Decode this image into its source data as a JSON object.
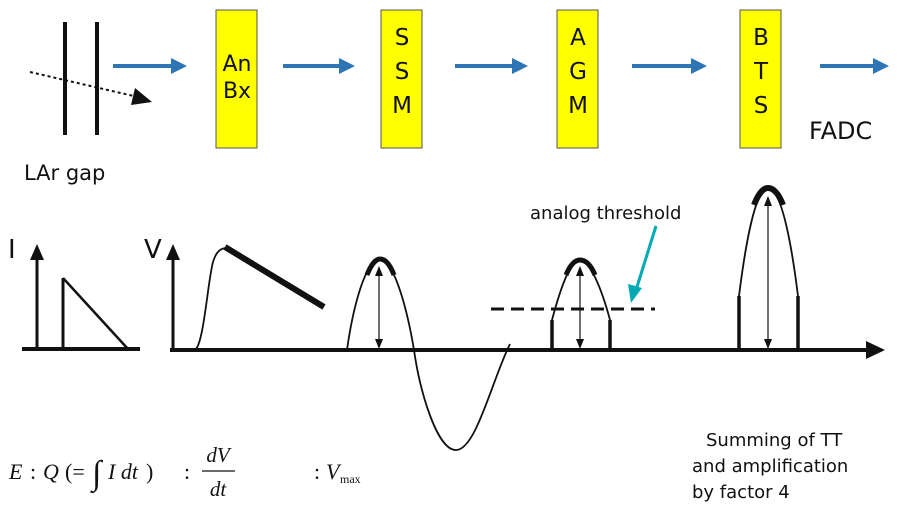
{
  "colors": {
    "box_fill": "#FFFF00",
    "box_stroke": "#555555",
    "arrow": "#2E75B6",
    "pointer": "#00AAB5",
    "ink": "#111111"
  },
  "chain": {
    "gap_label": "LAr gap",
    "boxes": [
      {
        "lines": [
          "An",
          "Bx"
        ]
      },
      {
        "lines": [
          "S",
          "S",
          "M"
        ]
      },
      {
        "lines": [
          "A",
          "G",
          "M"
        ]
      },
      {
        "lines": [
          "B",
          "T",
          "S"
        ]
      }
    ],
    "output_label": "FADC"
  },
  "waveforms": {
    "current_axis": "I",
    "voltage_axis": "V",
    "threshold_label": "analog threshold"
  },
  "formula": {
    "E": "E",
    "colon1": ":",
    "Q": "Q",
    "open": "(=",
    "integral": "∫",
    "I_dt": "I dt",
    "close": ")",
    "colon2": ":",
    "dV": "dV",
    "dt": "dt",
    "colon3": ":",
    "V": "V",
    "max": "max"
  },
  "note": {
    "lines": [
      "Summing of TT",
      "and amplification",
      "by factor 4"
    ]
  }
}
